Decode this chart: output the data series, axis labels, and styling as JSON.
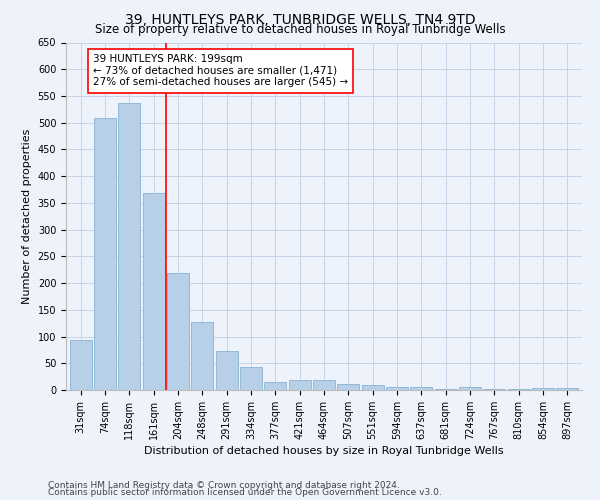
{
  "title": "39, HUNTLEYS PARK, TUNBRIDGE WELLS, TN4 9TD",
  "subtitle": "Size of property relative to detached houses in Royal Tunbridge Wells",
  "xlabel": "Distribution of detached houses by size in Royal Tunbridge Wells",
  "ylabel": "Number of detached properties",
  "categories": [
    "31sqm",
    "74sqm",
    "118sqm",
    "161sqm",
    "204sqm",
    "248sqm",
    "291sqm",
    "334sqm",
    "377sqm",
    "421sqm",
    "464sqm",
    "507sqm",
    "551sqm",
    "594sqm",
    "637sqm",
    "681sqm",
    "724sqm",
    "767sqm",
    "810sqm",
    "854sqm",
    "897sqm"
  ],
  "values": [
    93,
    508,
    537,
    369,
    219,
    128,
    73,
    43,
    15,
    19,
    19,
    11,
    10,
    6,
    5,
    1,
    5,
    1,
    1,
    3,
    4
  ],
  "bar_color": "#b8cfe8",
  "bar_edge_color": "#7aaad0",
  "annotation_line1": "39 HUNTLEYS PARK: 199sqm",
  "annotation_line2": "← 73% of detached houses are smaller (1,471)",
  "annotation_line3": "27% of semi-detached houses are larger (545) →",
  "red_line_x": 3.5,
  "ylim": [
    0,
    650
  ],
  "yticks": [
    0,
    50,
    100,
    150,
    200,
    250,
    300,
    350,
    400,
    450,
    500,
    550,
    600,
    650
  ],
  "footnote1": "Contains HM Land Registry data © Crown copyright and database right 2024.",
  "footnote2": "Contains public sector information licensed under the Open Government Licence v3.0.",
  "background_color": "#eef2fa",
  "grid_color": "#c8d4e8",
  "title_fontsize": 10,
  "subtitle_fontsize": 8.5,
  "xlabel_fontsize": 8,
  "ylabel_fontsize": 8,
  "tick_fontsize": 7,
  "annotation_fontsize": 7.5,
  "footnote_fontsize": 6.5
}
